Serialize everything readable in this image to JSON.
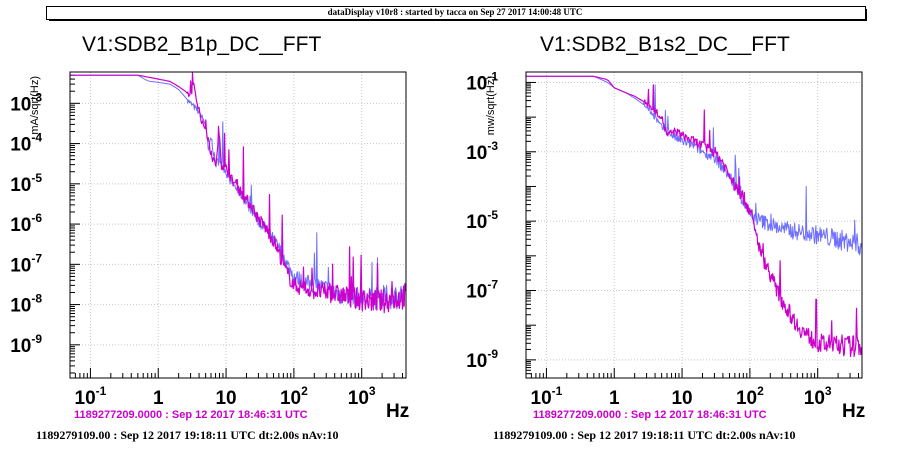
{
  "header": {
    "text": "dataDisplay v10r8 : started by tacca on Sep 27 2017 14:00:48 UTC"
  },
  "colors": {
    "reference": "#cc00cc",
    "current": "#6f6fff",
    "frame": "#000000",
    "grid": "#c8c8c8"
  },
  "chart_data": [
    {
      "type": "line",
      "title": "V1:SDB2_B1p_DC__FFT",
      "ylabel": "mA/sqrt(Hz)",
      "xlabel": "Hz",
      "xscale": "log",
      "yscale": "log",
      "xlim": [
        0.05,
        4500
      ],
      "ylim": [
        1.5e-10,
        0.006
      ],
      "grid": true,
      "xtick_labels": [
        {
          "value": 0.1,
          "base": "10",
          "exp": "-1"
        },
        {
          "value": 1,
          "base": "1",
          "exp": ""
        },
        {
          "value": 10,
          "base": "10",
          "exp": ""
        },
        {
          "value": 100,
          "base": "10",
          "exp": "2"
        },
        {
          "value": 1000,
          "base": "10",
          "exp": "3"
        }
      ],
      "ytick_labels": [
        {
          "value": 1e-09,
          "base": "10",
          "exp": "-9"
        },
        {
          "value": 1e-08,
          "base": "10",
          "exp": "-8"
        },
        {
          "value": 1e-07,
          "base": "10",
          "exp": "-7"
        },
        {
          "value": 1e-06,
          "base": "10",
          "exp": "-6"
        },
        {
          "value": 1e-05,
          "base": "10",
          "exp": "-5"
        },
        {
          "value": 0.0001,
          "base": "10",
          "exp": "-4"
        },
        {
          "value": 0.001,
          "base": "10",
          "exp": "-3"
        }
      ],
      "series": [
        {
          "timestamp": "1189277209.0000 : Sep 12 2017 18:46:31 UTC",
          "points": [
            [
              0.05,
              0.005
            ],
            [
              0.5,
              0.005
            ],
            [
              0.7,
              0.0045
            ],
            [
              1.0,
              0.004
            ],
            [
              1.5,
              0.0035
            ],
            [
              2.0,
              0.0026
            ],
            [
              2.5,
              0.002
            ],
            [
              3.0,
              0.0015
            ],
            [
              3.3,
              0.003
            ],
            [
              3.6,
              0.0014
            ],
            [
              4.0,
              0.0007
            ],
            [
              4.5,
              0.0003
            ],
            [
              5.0,
              0.00025
            ],
            [
              5.5,
              0.00012
            ],
            [
              6.0,
              5e-05
            ],
            [
              7.0,
              3e-05
            ],
            [
              8.0,
              0.00015
            ],
            [
              8.5,
              3e-05
            ],
            [
              10,
              2.5e-05
            ],
            [
              12,
              1.3e-05
            ],
            [
              15,
              8e-06
            ],
            [
              20,
              4e-06
            ],
            [
              25,
              2.5e-06
            ],
            [
              30,
              1.3e-06
            ],
            [
              35,
              1e-06
            ],
            [
              40,
              7e-07
            ],
            [
              50,
              4e-07
            ],
            [
              60,
              2e-07
            ],
            [
              70,
              1e-07
            ],
            [
              80,
              6e-08
            ],
            [
              100,
              3e-08
            ],
            [
              150,
              2.5e-08
            ],
            [
              200,
              2.2e-08
            ],
            [
              300,
              2e-08
            ],
            [
              500,
              1.7e-08
            ],
            [
              1000,
              1.3e-08
            ],
            [
              2000,
              1.2e-08
            ],
            [
              4500,
              1.6e-08
            ]
          ]
        },
        {
          "timestamp": "1189279109.00 : Sep 12 2017 19:18:11 UTC dt:2.00s nAv:10",
          "points": [
            [
              0.05,
              0.005
            ],
            [
              0.5,
              0.005
            ],
            [
              0.7,
              0.0036
            ],
            [
              1.0,
              0.0033
            ],
            [
              1.5,
              0.003
            ],
            [
              2.0,
              0.0022
            ],
            [
              3.0,
              0.001
            ],
            [
              4.0,
              0.0006
            ],
            [
              5.0,
              0.0003
            ],
            [
              5.5,
              6e-05
            ],
            [
              6.0,
              0.00015
            ],
            [
              7.0,
              3e-05
            ],
            [
              8.0,
              4e-05
            ],
            [
              10,
              2e-05
            ],
            [
              12,
              1.1e-05
            ],
            [
              15,
              7e-06
            ],
            [
              20,
              3.5e-06
            ],
            [
              25,
              2e-06
            ],
            [
              30,
              1.2e-06
            ],
            [
              40,
              7e-07
            ],
            [
              50,
              4e-07
            ],
            [
              60,
              2.5e-07
            ],
            [
              80,
              1e-07
            ],
            [
              100,
              5e-08
            ],
            [
              150,
              3.5e-08
            ],
            [
              200,
              3e-08
            ],
            [
              300,
              2.5e-08
            ],
            [
              500,
              1.8e-08
            ],
            [
              1000,
              1.4e-08
            ],
            [
              2000,
              1.5e-08
            ],
            [
              4500,
              1.7e-08
            ]
          ]
        }
      ]
    },
    {
      "type": "line",
      "title": "V1:SDB2_B1s2_DC__FFT",
      "ylabel": "mw/sqrt(Hz)",
      "xlabel": "Hz",
      "xscale": "log",
      "yscale": "log",
      "xlim": [
        0.05,
        4500
      ],
      "ylim": [
        3e-10,
        0.2
      ],
      "grid": true,
      "xtick_labels": [
        {
          "value": 0.1,
          "base": "10",
          "exp": "-1"
        },
        {
          "value": 1,
          "base": "1",
          "exp": ""
        },
        {
          "value": 10,
          "base": "10",
          "exp": ""
        },
        {
          "value": 100,
          "base": "10",
          "exp": "2"
        },
        {
          "value": 1000,
          "base": "10",
          "exp": "3"
        }
      ],
      "ytick_labels": [
        {
          "value": 1e-09,
          "base": "10",
          "exp": "-9"
        },
        {
          "value": 1e-07,
          "base": "10",
          "exp": "-7"
        },
        {
          "value": 1e-05,
          "base": "10",
          "exp": "-5"
        },
        {
          "value": 0.001,
          "base": "10",
          "exp": "-3"
        },
        {
          "value": 0.1,
          "base": "10",
          "exp": "-1"
        }
      ],
      "series": [
        {
          "timestamp": "1189277209.0000 : Sep 12 2017 18:46:31 UTC",
          "points": [
            [
              0.05,
              0.15
            ],
            [
              0.5,
              0.15
            ],
            [
              0.8,
              0.12
            ],
            [
              1.0,
              0.07
            ],
            [
              1.5,
              0.05
            ],
            [
              2.0,
              0.04
            ],
            [
              3.0,
              0.025
            ],
            [
              4.0,
              0.015
            ],
            [
              5.0,
              0.01
            ],
            [
              6.0,
              0.003
            ],
            [
              8.0,
              0.004
            ],
            [
              10,
              0.003
            ],
            [
              15,
              0.002
            ],
            [
              20,
              0.0015
            ],
            [
              30,
              0.001
            ],
            [
              40,
              0.0005
            ],
            [
              50,
              0.0002
            ],
            [
              60,
              0.0001
            ],
            [
              80,
              5e-05
            ],
            [
              100,
              2e-05
            ],
            [
              120,
              5e-06
            ],
            [
              150,
              1e-06
            ],
            [
              200,
              3e-07
            ],
            [
              250,
              1e-07
            ],
            [
              300,
              5e-08
            ],
            [
              400,
              2e-08
            ],
            [
              500,
              1e-08
            ],
            [
              700,
              5e-09
            ],
            [
              1000,
              3e-09
            ],
            [
              2000,
              2.5e-09
            ],
            [
              4500,
              2.5e-09
            ]
          ]
        },
        {
          "timestamp": "1189279109.00 : Sep 12 2017 19:18:11 UTC dt:2.00s nAv:10",
          "points": [
            [
              0.05,
              0.15
            ],
            [
              0.5,
              0.15
            ],
            [
              0.8,
              0.1
            ],
            [
              1.0,
              0.07
            ],
            [
              1.5,
              0.05
            ],
            [
              2.0,
              0.035
            ],
            [
              3.0,
              0.02
            ],
            [
              4.0,
              0.01
            ],
            [
              5.0,
              0.005
            ],
            [
              6.0,
              0.004
            ],
            [
              8.0,
              0.0025
            ],
            [
              10,
              0.002
            ],
            [
              15,
              0.0015
            ],
            [
              20,
              0.001
            ],
            [
              30,
              0.0007
            ],
            [
              50,
              0.0002
            ],
            [
              70,
              6e-05
            ],
            [
              100,
              1.5e-05
            ],
            [
              150,
              1e-05
            ],
            [
              200,
              8e-06
            ],
            [
              300,
              6e-06
            ],
            [
              500,
              5e-06
            ],
            [
              1000,
              4e-06
            ],
            [
              2000,
              3e-06
            ],
            [
              4500,
              2e-06
            ]
          ]
        }
      ]
    }
  ]
}
